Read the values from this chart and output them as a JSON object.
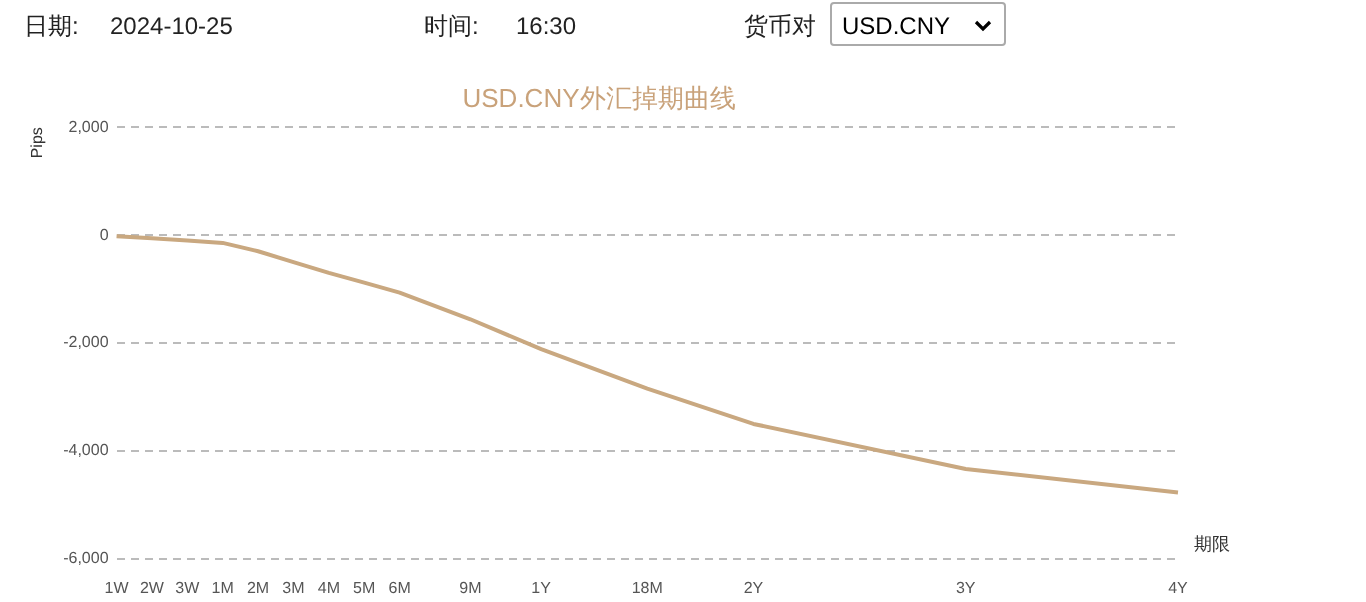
{
  "chart_data": {
    "type": "line",
    "title": "USD.CNY外汇掉期曲线",
    "ylabel": "Pips",
    "xlabel": "期限",
    "annotations": [
      "日期:",
      "2024-10-25",
      "时间:",
      "16:30",
      "货币对",
      "USD.CNY"
    ],
    "categories": [
      "1W",
      "2W",
      "3W",
      "1M",
      "2M",
      "3M",
      "4M",
      "5M",
      "6M",
      null,
      "9M",
      null,
      "1Y",
      null,
      null,
      "18M",
      null,
      null,
      "2Y",
      null,
      null,
      null,
      null,
      null,
      "3Y",
      null,
      null,
      null,
      null,
      null,
      "4Y"
    ],
    "series": [
      {
        "color": "#c9a880",
        "values": [
          -20,
          -60,
          -100,
          -145,
          -300,
          -500,
          -700,
          -880,
          -1065,
          null,
          -1560,
          null,
          -2115,
          null,
          null,
          -2845,
          null,
          null,
          -3500,
          null,
          null,
          null,
          null,
          null,
          -4335,
          null,
          null,
          null,
          null,
          null,
          -4770
        ]
      }
    ],
    "ylim": [
      -6000,
      2000
    ],
    "yticks": [
      {
        "value": -6000,
        "label": "-6,000"
      },
      {
        "value": -4000,
        "label": "-4,000"
      },
      {
        "value": -2000,
        "label": "-2,000"
      },
      0,
      {
        "value": 2000,
        "label": "2,000"
      }
    ],
    "grid": "y",
    "legend": false,
    "marker": "none",
    "line_style": "solid"
  }
}
